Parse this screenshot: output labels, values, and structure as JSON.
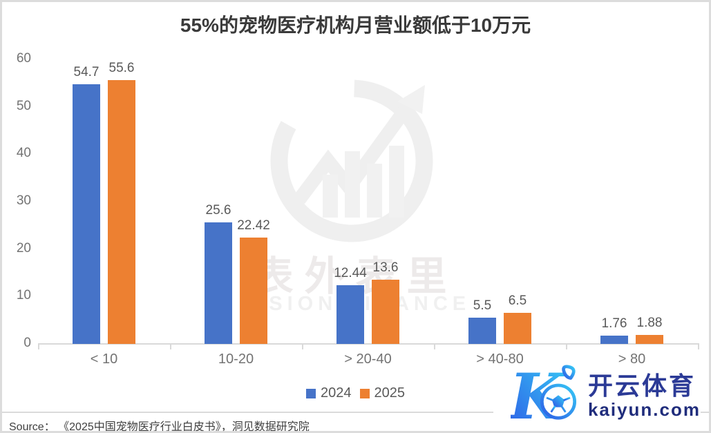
{
  "title": "55%的宠物医疗机构月营业额低于10万元",
  "chart_data": {
    "type": "bar",
    "title": "55%的宠物医疗机构月营业额低于10万元",
    "categories": [
      "< 10",
      "10-20",
      "> 20-40",
      "> 40-80",
      "> 80"
    ],
    "series": [
      {
        "name": "2024",
        "color": "#4673C8",
        "values": [
          54.7,
          25.6,
          12.44,
          5.5,
          1.76
        ]
      },
      {
        "name": "2025",
        "color": "#ED8031",
        "values": [
          55.6,
          22.42,
          13.6,
          6.5,
          1.88
        ]
      }
    ],
    "xlabel": "",
    "ylabel": "",
    "ylim": [
      0,
      60
    ],
    "yticks": [
      0,
      10,
      20,
      30,
      40,
      50,
      60
    ],
    "grid": false,
    "legend_position": "bottom",
    "value_labels": true
  },
  "legend": {
    "items": [
      {
        "label": "2024",
        "color": "#4673C8"
      },
      {
        "label": "2025",
        "color": "#ED8031"
      }
    ]
  },
  "watermark": {
    "cn": "表外表里",
    "en": "VISION FINANCE"
  },
  "source_text": "Source： 《2025中国宠物医疗行业白皮书》，洞见数据研究院",
  "logo": {
    "letter": "K",
    "brand": "开云体育",
    "domain": "kaiyun.com"
  },
  "colors": {
    "bar_blue": "#4673C8",
    "bar_orange": "#ED8031",
    "axis_line": "#D9D9D9",
    "tick_text": "#737373",
    "value_text": "#595959",
    "title_text": "#3A3A3A",
    "watermark_gray": "#EFEFEF",
    "logo_blue": "#2B3A96",
    "logo_navy": "#202D7C",
    "logo_grad_start": "#2E5CE6",
    "logo_grad_end": "#35C8F5"
  }
}
